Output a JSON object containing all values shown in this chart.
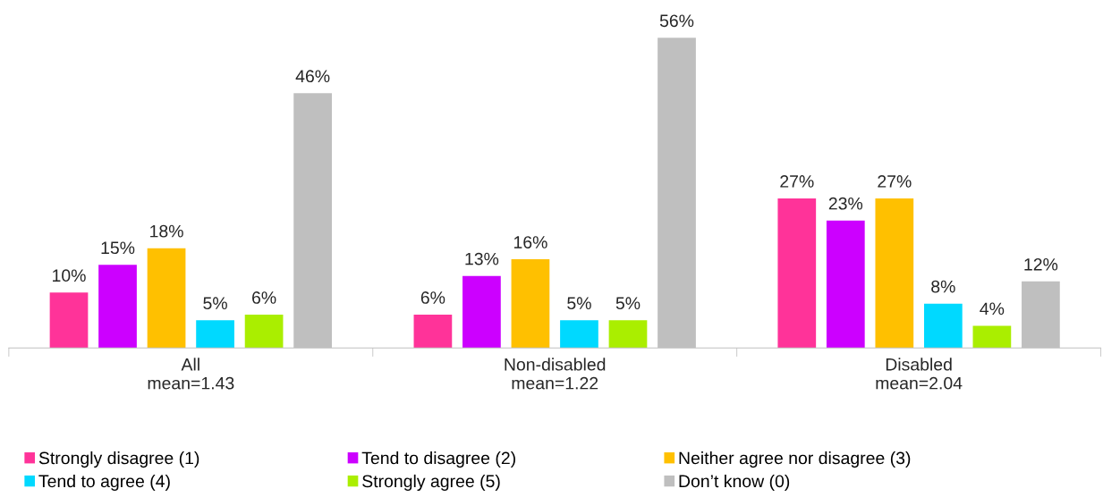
{
  "chart_data": {
    "type": "bar",
    "categories": [
      "All\nmean=1.43",
      "Non-disabled\nmean=1.22",
      "Disabled\nmean=2.04"
    ],
    "series": [
      {
        "name": "Strongly disagree (1)",
        "color": "#ff3399",
        "values": [
          10,
          6,
          27
        ],
        "value_labels": [
          "10%",
          "6%",
          "27%"
        ]
      },
      {
        "name": "Tend to disagree (2)",
        "color": "#cc00ff",
        "values": [
          15,
          13,
          23
        ],
        "value_labels": [
          "15%",
          "13%",
          "23%"
        ]
      },
      {
        "name": "Neither agree nor disagree (3)",
        "color": "#ffc000",
        "values": [
          18,
          16,
          27
        ],
        "value_labels": [
          "18%",
          "16%",
          "27%"
        ]
      },
      {
        "name": "Tend to agree (4)",
        "color": "#00d9ff",
        "values": [
          5,
          5,
          8
        ],
        "value_labels": [
          "5%",
          "5%",
          "8%"
        ]
      },
      {
        "name": "Strongly agree (5)",
        "color": "#aaee00",
        "values": [
          6,
          5,
          4
        ],
        "value_labels": [
          "6%",
          "5%",
          "4%"
        ]
      },
      {
        "name": "Don’t know (0)",
        "color": "#bfbfbf",
        "values": [
          46,
          56,
          12
        ],
        "value_labels": [
          "46%",
          "56%",
          "12%"
        ]
      }
    ],
    "legend": "bottom",
    "grid": false,
    "tick_labels": "x"
  }
}
